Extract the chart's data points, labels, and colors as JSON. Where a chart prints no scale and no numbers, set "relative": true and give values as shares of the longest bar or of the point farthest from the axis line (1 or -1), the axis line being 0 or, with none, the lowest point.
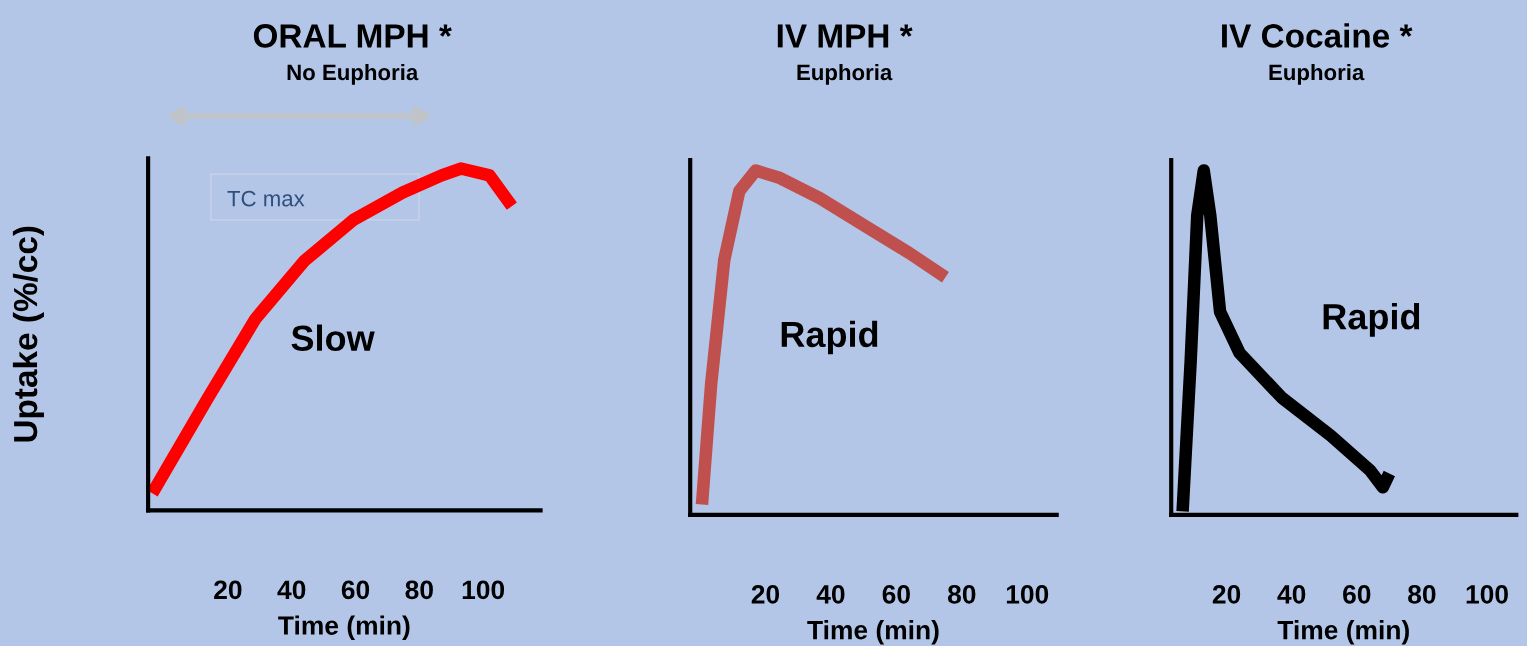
{
  "chart_data": [
    {
      "type": "line",
      "title": "ORAL MPH *",
      "subtitle": "No Euphoria",
      "xlabel": "Time (min)",
      "ylabel": "Uptake (%/cc)",
      "relative": true,
      "xlim": [
        -5,
        118
      ],
      "xticks": [
        20,
        40,
        60,
        80,
        100
      ],
      "grid": false,
      "legend": false,
      "marker": "none",
      "line_style": "solid",
      "annotations": [
        "Slow",
        "TC max"
      ],
      "series": [
        {
          "color": "#ff0000",
          "x": [
            -3.7,
            13.2,
            28.6,
            44,
            59.4,
            74.8,
            87,
            93,
            102,
            109
          ],
          "values": [
            0.05,
            0.32,
            0.56,
            0.73,
            0.85,
            0.93,
            0.98,
            1.0,
            0.98,
            0.89
          ]
        }
      ]
    },
    {
      "type": "line",
      "title": "IV MPH *",
      "subtitle": "Euphoria",
      "xlabel": "Time (min)",
      "relative": true,
      "xlim": [
        -3,
        109
      ],
      "xticks": [
        20,
        40,
        60,
        80,
        100
      ],
      "grid": false,
      "legend": false,
      "marker": "none",
      "line_style": "solid",
      "annotations": [
        "Rapid"
      ],
      "series": [
        {
          "color": "#c0504d",
          "x": [
            0.6,
            3.4,
            7.4,
            12,
            17,
            24,
            36.6,
            52,
            64,
            75
          ],
          "values": [
            0.03,
            0.38,
            0.74,
            0.94,
            1.0,
            0.98,
            0.92,
            0.83,
            0.76,
            0.69
          ]
        }
      ]
    },
    {
      "type": "line",
      "title": "IV Cocaine *",
      "subtitle": "Euphoria",
      "xlabel": "Time (min)",
      "relative": true,
      "xlim": [
        3,
        109
      ],
      "xticks": [
        20,
        40,
        60,
        80,
        100
      ],
      "grid": false,
      "legend": false,
      "marker": "none",
      "line_style": "solid",
      "annotations": [
        "Rapid"
      ],
      "series": [
        {
          "color": "#000000",
          "x": [
            6.5,
            9,
            11,
            13,
            15,
            18,
            24,
            37,
            52,
            64,
            68,
            70
          ],
          "values": [
            0.01,
            0.45,
            0.87,
            1.0,
            0.87,
            0.59,
            0.47,
            0.34,
            0.23,
            0.13,
            0.08,
            0.12
          ]
        }
      ]
    }
  ]
}
